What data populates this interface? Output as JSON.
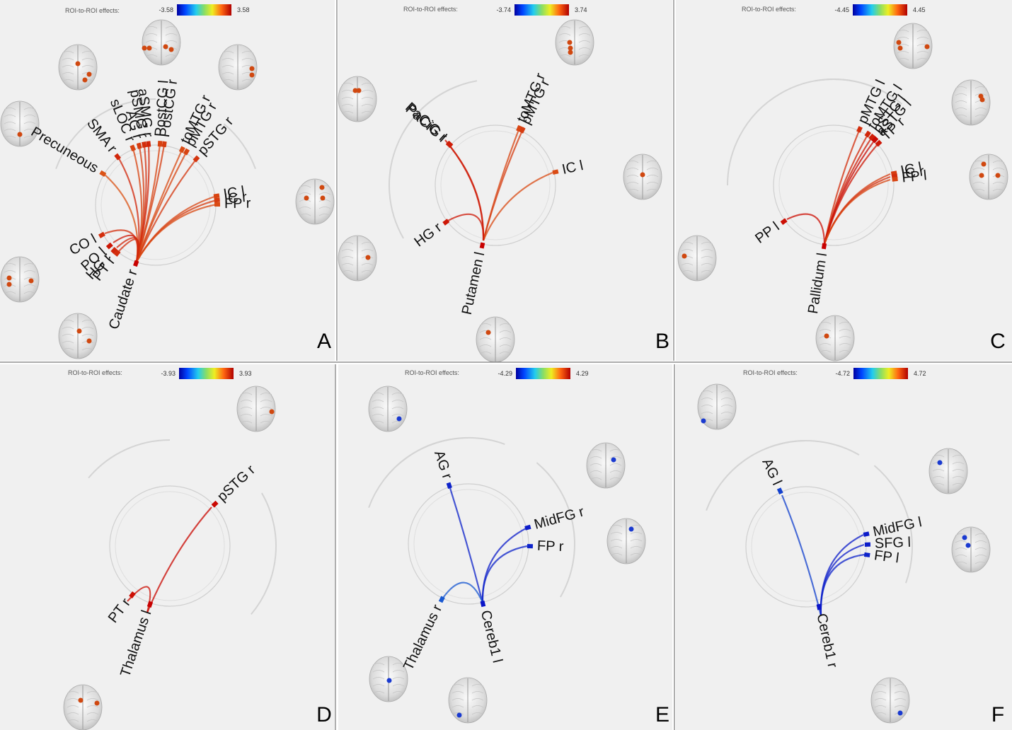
{
  "colorbar_title": "ROI-to-ROI effects:",
  "panels": [
    {
      "letter": "A",
      "vmin": "-3.58",
      "vmax": "3.58",
      "sign": "pos",
      "seed": "Caudate r",
      "rois": [
        {
          "label": "Precuneous",
          "t": 2.9,
          "strength": 0.45
        },
        {
          "label": "SMA r",
          "t": 3.0,
          "strength": 0.75
        },
        {
          "label": "sLOC r",
          "t": 2.7,
          "strength": 0.55
        },
        {
          "label": "AG r",
          "t": 2.8,
          "strength": 0.6
        },
        {
          "label": "pSMG r",
          "t": 3.0,
          "strength": 0.7
        },
        {
          "label": "aSMG r",
          "t": 3.1,
          "strength": 0.75
        },
        {
          "label": "PostCG l",
          "t": 2.8,
          "strength": 0.55
        },
        {
          "label": "PostCG r",
          "t": 2.9,
          "strength": 0.6
        },
        {
          "label": "toMTG r",
          "t": 2.7,
          "strength": 0.5
        },
        {
          "label": "pMTG r",
          "t": 2.8,
          "strength": 0.55
        },
        {
          "label": "pSTG r",
          "t": 2.9,
          "strength": 0.65
        },
        {
          "label": "IC l",
          "t": 2.8,
          "strength": 0.55
        },
        {
          "label": "IC r",
          "t": 2.9,
          "strength": 0.6
        },
        {
          "label": "FP r",
          "t": 2.7,
          "strength": 0.5
        },
        {
          "label": "CO l",
          "t": 3.0,
          "strength": 0.7
        },
        {
          "label": "PO l",
          "t": 3.2,
          "strength": 0.85
        },
        {
          "label": "HG r",
          "t": 3.1,
          "strength": 0.75
        },
        {
          "label": "PT r",
          "t": 3.0,
          "strength": 0.7
        }
      ]
    },
    {
      "letter": "B",
      "vmin": "-3.74",
      "vmax": "3.74",
      "sign": "pos",
      "seed": "Putamen l",
      "rois": [
        {
          "label": "PaCiG r",
          "t": 3.4,
          "strength": 0.85
        },
        {
          "label": "PaCiG l",
          "t": 3.2,
          "strength": 0.8
        },
        {
          "label": "toMTG r",
          "t": 2.9,
          "strength": 0.55
        },
        {
          "label": "pMTG r",
          "t": 3.0,
          "strength": 0.6
        },
        {
          "label": "IC l",
          "t": 2.9,
          "strength": 0.5
        },
        {
          "label": "HG r",
          "t": 3.3,
          "strength": 0.85
        }
      ]
    },
    {
      "letter": "C",
      "vmin": "-4.45",
      "vmax": "4.45",
      "sign": "pos",
      "seed": "Pallidum l",
      "rois": [
        {
          "label": "pMTG l",
          "t": 3.3,
          "strength": 0.7
        },
        {
          "label": "toMTG l",
          "t": 3.4,
          "strength": 0.75
        },
        {
          "label": "pSTG l",
          "t": 3.5,
          "strength": 0.8
        },
        {
          "label": "aSTG l",
          "t": 3.9,
          "strength": 0.95
        },
        {
          "label": "TP r",
          "t": 3.6,
          "strength": 0.85
        },
        {
          "label": "IC l",
          "t": 3.3,
          "strength": 0.6
        },
        {
          "label": "IC r",
          "t": 3.4,
          "strength": 0.7
        },
        {
          "label": "FP l",
          "t": 3.2,
          "strength": 0.55
        },
        {
          "label": "PP l",
          "t": 3.8,
          "strength": 0.9
        }
      ]
    },
    {
      "letter": "D",
      "vmin": "-3.93",
      "vmax": "3.93",
      "sign": "pos",
      "seed": "Thalamus l",
      "rois": [
        {
          "label": "pSTG r",
          "t": 3.7,
          "strength": 0.95
        },
        {
          "label": "PT r",
          "t": 3.6,
          "strength": 0.9
        }
      ]
    },
    {
      "letter": "E",
      "vmin": "-4.29",
      "vmax": "4.29",
      "sign": "neg",
      "seed": "Cereb1 l",
      "rois": [
        {
          "label": "AG r",
          "t": -3.9,
          "strength": 0.9
        },
        {
          "label": "MidFG r",
          "t": -4.0,
          "strength": 0.95
        },
        {
          "label": "FP r",
          "t": -3.8,
          "strength": 0.9
        },
        {
          "label": "Thalamus r",
          "t": -3.0,
          "strength": 0.55
        }
      ]
    },
    {
      "letter": "F",
      "vmin": "-4.72",
      "vmax": "4.72",
      "sign": "neg",
      "seed": "Cereb1 r",
      "rois": [
        {
          "label": "AG l",
          "t": -3.6,
          "strength": 0.7
        },
        {
          "label": "MidFG l",
          "t": -4.2,
          "strength": 0.95
        },
        {
          "label": "SFG l",
          "t": -4.3,
          "strength": 0.95
        },
        {
          "label": "FP l",
          "t": -4.0,
          "strength": 0.9
        }
      ]
    }
  ]
}
